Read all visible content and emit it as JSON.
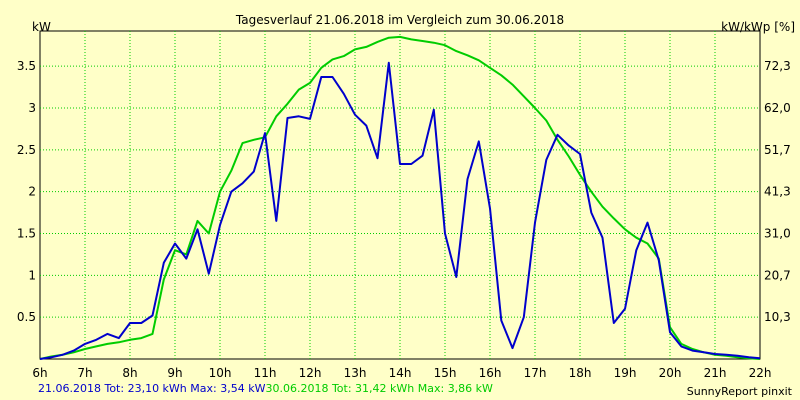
{
  "chart_data": {
    "type": "line",
    "title": "Tagesverlauf 21.06.2018 im Vergleich zum 30.06.2018",
    "ylabel": "kW",
    "y2label": "kW/kWp [%]",
    "ylim": [
      0,
      3.92
    ],
    "xlim": [
      6,
      22
    ],
    "x_ticks": [
      6,
      7,
      8,
      9,
      10,
      11,
      12,
      13,
      14,
      15,
      16,
      17,
      18,
      19,
      20,
      21,
      22
    ],
    "x_tick_labels": [
      "6h",
      "7h",
      "8h",
      "9h",
      "10h",
      "11h",
      "12h",
      "13h",
      "14h",
      "15h",
      "16h",
      "17h",
      "18h",
      "19h",
      "20h",
      "21h",
      "22h"
    ],
    "y_ticks": [
      0.5,
      1,
      1.5,
      2,
      2.5,
      3,
      3.5
    ],
    "y_tick_labels": [
      "0.5",
      "1",
      "1.5",
      "2",
      "2.5",
      "3",
      "3.5"
    ],
    "y2_ticks": [
      0.5,
      1,
      1.5,
      2,
      2.5,
      3,
      3.5
    ],
    "y2_tick_labels": [
      "10,3",
      "20,7",
      "31,0",
      "41,3",
      "51,7",
      "62,0",
      "72,3"
    ],
    "grid": true,
    "series": [
      {
        "name": "21.06.2018",
        "color": "#0000cc",
        "x": [
          6.0,
          6.25,
          6.5,
          6.75,
          7.0,
          7.25,
          7.5,
          7.75,
          8.0,
          8.25,
          8.5,
          8.75,
          9.0,
          9.25,
          9.5,
          9.75,
          10.0,
          10.25,
          10.5,
          10.75,
          11.0,
          11.25,
          11.5,
          11.75,
          12.0,
          12.25,
          12.5,
          12.75,
          13.0,
          13.25,
          13.5,
          13.75,
          14.0,
          14.25,
          14.5,
          14.75,
          15.0,
          15.25,
          15.5,
          15.75,
          16.0,
          16.25,
          16.5,
          16.75,
          17.0,
          17.25,
          17.5,
          17.75,
          18.0,
          18.25,
          18.5,
          18.75,
          19.0,
          19.25,
          19.5,
          19.75,
          20.0,
          20.25,
          20.5,
          20.75,
          21.0,
          21.25,
          21.5,
          21.75,
          22.0
        ],
        "values": [
          0.0,
          0.02,
          0.05,
          0.1,
          0.18,
          0.23,
          0.3,
          0.25,
          0.43,
          0.43,
          0.52,
          1.15,
          1.38,
          1.2,
          1.55,
          1.02,
          1.6,
          2.0,
          2.1,
          2.24,
          2.7,
          1.65,
          2.88,
          2.9,
          2.87,
          3.37,
          3.37,
          3.17,
          2.92,
          2.79,
          2.4,
          3.54,
          2.33,
          2.33,
          2.43,
          2.98,
          1.5,
          0.98,
          2.15,
          2.6,
          1.8,
          0.46,
          0.13,
          0.5,
          1.63,
          2.38,
          2.68,
          2.55,
          2.45,
          1.75,
          1.45,
          0.43,
          0.6,
          1.3,
          1.63,
          1.18,
          0.32,
          0.15,
          0.1,
          0.08,
          0.06,
          0.05,
          0.04,
          0.02,
          0.01
        ]
      },
      {
        "name": "30.06.2018",
        "color": "#00cc00",
        "x": [
          6.0,
          6.25,
          6.5,
          6.75,
          7.0,
          7.25,
          7.5,
          7.75,
          8.0,
          8.25,
          8.5,
          8.75,
          9.0,
          9.25,
          9.5,
          9.75,
          10.0,
          10.25,
          10.5,
          10.75,
          11.0,
          11.25,
          11.5,
          11.75,
          12.0,
          12.25,
          12.5,
          12.75,
          13.0,
          13.25,
          13.5,
          13.75,
          14.0,
          14.25,
          14.5,
          14.75,
          15.0,
          15.25,
          15.5,
          15.75,
          16.0,
          16.25,
          16.5,
          16.75,
          17.0,
          17.25,
          17.5,
          17.75,
          18.0,
          18.25,
          18.5,
          18.75,
          19.0,
          19.25,
          19.5,
          19.75,
          20.0,
          20.25,
          20.5,
          20.75,
          21.0,
          21.25,
          21.5,
          21.75,
          22.0
        ],
        "values": [
          0.0,
          0.03,
          0.05,
          0.08,
          0.12,
          0.15,
          0.18,
          0.2,
          0.23,
          0.25,
          0.3,
          0.95,
          1.3,
          1.25,
          1.65,
          1.5,
          2.0,
          2.25,
          2.58,
          2.62,
          2.65,
          2.9,
          3.05,
          3.22,
          3.3,
          3.48,
          3.58,
          3.62,
          3.7,
          3.73,
          3.79,
          3.84,
          3.85,
          3.82,
          3.8,
          3.78,
          3.75,
          3.68,
          3.63,
          3.57,
          3.48,
          3.39,
          3.28,
          3.14,
          3.0,
          2.85,
          2.62,
          2.42,
          2.2,
          2.0,
          1.82,
          1.68,
          1.55,
          1.45,
          1.38,
          1.2,
          0.38,
          0.18,
          0.12,
          0.08,
          0.05,
          0.04,
          0.02,
          0.01,
          0.0
        ]
      }
    ],
    "legend": {
      "entry1": "21.06.2018 Tot: 23,10 kWh Max: 3,54 kW",
      "entry2": "30.06.2018 Tot: 31,42 kWh Max: 3,86 kW"
    },
    "credit": "SunnyReport pinxit"
  }
}
